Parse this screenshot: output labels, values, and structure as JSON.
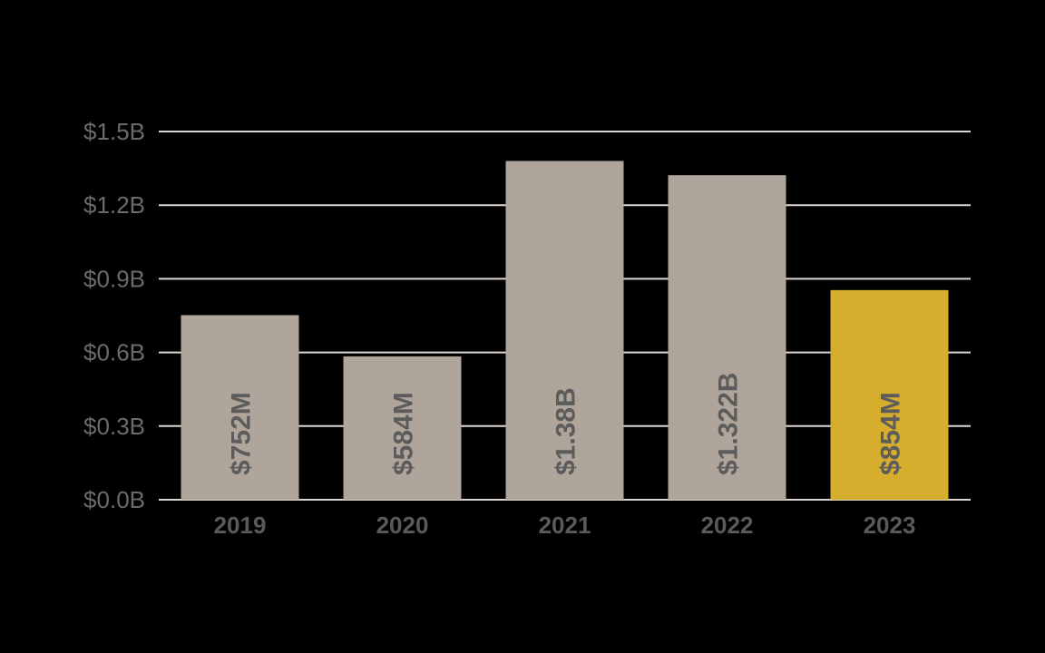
{
  "chart_data": {
    "type": "bar",
    "title": "",
    "xlabel": "",
    "ylabel": "",
    "categories": [
      "2019",
      "2020",
      "2021",
      "2022",
      "2023"
    ],
    "values": [
      0.752,
      0.584,
      1.38,
      1.322,
      0.854
    ],
    "value_unit": "billion USD",
    "data_labels": [
      "$752M",
      "$584M",
      "$1.38B",
      "$1.322B",
      "$854M"
    ],
    "ylim": [
      0,
      1.5
    ],
    "y_ticks": [
      0,
      0.3,
      0.6,
      0.9,
      1.2,
      1.5
    ],
    "y_tick_labels": [
      "$0.0B",
      "$0.3B",
      "$0.6B",
      "$0.9B",
      "$1.2B",
      "$1.5B"
    ],
    "grid": true,
    "legend": "none",
    "highlight_category": "2023",
    "colors": {
      "bar": "#b0a59a",
      "highlight": "#d6ad2c",
      "background": "#000000",
      "gridline": "#dcd6d0",
      "axis_text": "#6b6b6b",
      "label_text": "#5c5c5c"
    }
  }
}
